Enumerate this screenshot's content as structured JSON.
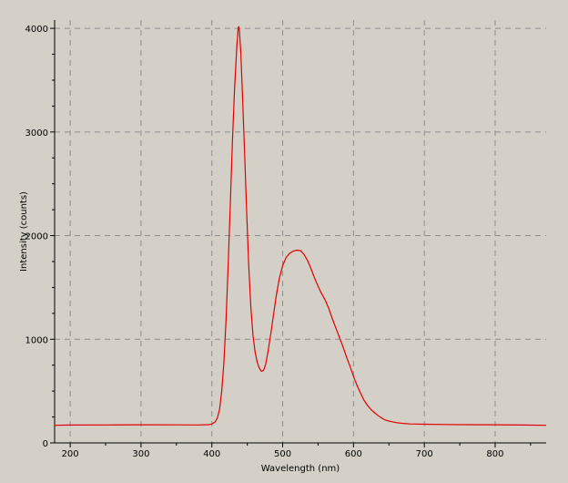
{
  "chart_data": {
    "type": "line",
    "xlabel": "Wavelength (nm)",
    "ylabel": "Intensity (counts)",
    "xlim": [
      178,
      872
    ],
    "ylim": [
      0,
      4080
    ],
    "x_ticks": [
      200,
      300,
      400,
      500,
      600,
      700,
      800
    ],
    "y_ticks": [
      0,
      1000,
      2000,
      3000,
      4000
    ],
    "grid": true,
    "background": "#d4d0c8",
    "line_color": "#e00000",
    "series": [
      {
        "points": [
          [
            178,
            170
          ],
          [
            200,
            172
          ],
          [
            250,
            173
          ],
          [
            300,
            175
          ],
          [
            350,
            174
          ],
          [
            380,
            173
          ],
          [
            395,
            176
          ],
          [
            400,
            182
          ],
          [
            405,
            205
          ],
          [
            408,
            245
          ],
          [
            411,
            330
          ],
          [
            414,
            500
          ],
          [
            417,
            780
          ],
          [
            420,
            1180
          ],
          [
            423,
            1700
          ],
          [
            426,
            2300
          ],
          [
            429,
            2900
          ],
          [
            432,
            3400
          ],
          [
            435,
            3800
          ],
          [
            437,
            3985
          ],
          [
            438,
            4020
          ],
          [
            439,
            3970
          ],
          [
            441,
            3760
          ],
          [
            443,
            3400
          ],
          [
            446,
            2850
          ],
          [
            449,
            2250
          ],
          [
            452,
            1720
          ],
          [
            455,
            1320
          ],
          [
            458,
            1040
          ],
          [
            461,
            880
          ],
          [
            464,
            780
          ],
          [
            467,
            720
          ],
          [
            470,
            690
          ],
          [
            473,
            700
          ],
          [
            476,
            760
          ],
          [
            479,
            870
          ],
          [
            483,
            1040
          ],
          [
            487,
            1230
          ],
          [
            491,
            1420
          ],
          [
            495,
            1580
          ],
          [
            500,
            1710
          ],
          [
            505,
            1790
          ],
          [
            510,
            1830
          ],
          [
            515,
            1850
          ],
          [
            520,
            1860
          ],
          [
            525,
            1855
          ],
          [
            530,
            1820
          ],
          [
            535,
            1760
          ],
          [
            540,
            1680
          ],
          [
            545,
            1590
          ],
          [
            550,
            1510
          ],
          [
            555,
            1440
          ],
          [
            560,
            1380
          ],
          [
            565,
            1300
          ],
          [
            570,
            1200
          ],
          [
            575,
            1110
          ],
          [
            580,
            1020
          ],
          [
            585,
            930
          ],
          [
            590,
            830
          ],
          [
            595,
            740
          ],
          [
            600,
            640
          ],
          [
            605,
            555
          ],
          [
            610,
            480
          ],
          [
            615,
            410
          ],
          [
            620,
            360
          ],
          [
            625,
            320
          ],
          [
            630,
            290
          ],
          [
            635,
            262
          ],
          [
            640,
            238
          ],
          [
            645,
            220
          ],
          [
            650,
            210
          ],
          [
            660,
            196
          ],
          [
            670,
            188
          ],
          [
            680,
            183
          ],
          [
            700,
            180
          ],
          [
            730,
            178
          ],
          [
            760,
            176
          ],
          [
            800,
            175
          ],
          [
            840,
            172
          ],
          [
            872,
            170
          ]
        ]
      }
    ]
  }
}
